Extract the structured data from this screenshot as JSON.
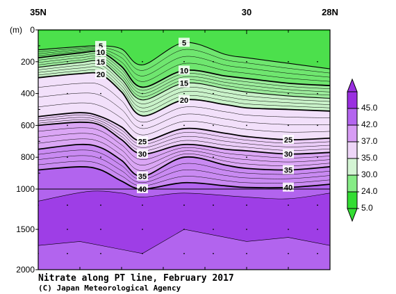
{
  "chart_data": {
    "type": "contour",
    "title": "Nitrate along PT line, February 2017",
    "credit": "(C) Japan Meteorological Agency",
    "unit_label": "(m)",
    "x_ticks": [
      "35N",
      "30",
      "28N"
    ],
    "x_range": [
      35,
      28
    ],
    "y_ticks": [
      "0",
      "200",
      "400",
      "600",
      "800",
      "1000",
      "1500",
      "2000"
    ],
    "y_range": [
      0,
      2000
    ],
    "y_break": 1000,
    "legend_levels": [
      "45.0",
      "42.0",
      "37.0",
      "35.0",
      "30.0",
      "24.0",
      "5.0"
    ],
    "legend_colors": [
      "#9a2fe0",
      "#b465ef",
      "#d79cf4",
      "#eed6f8",
      "#d4f5d4",
      "#86ec86",
      "#33dd33"
    ],
    "contour_labels": [
      "5",
      "10",
      "15",
      "20",
      "25",
      "30",
      "35",
      "40"
    ],
    "contours": [
      {
        "level": 5,
        "depths": [
          [
            35,
            125
          ],
          [
            34,
            105
          ],
          [
            33.5,
            100
          ],
          [
            33,
            120
          ],
          [
            32.5,
            220
          ],
          [
            31.5,
            80
          ],
          [
            30.5,
            155
          ],
          [
            30,
            175
          ],
          [
            29,
            210
          ],
          [
            28,
            245
          ]
        ]
      },
      {
        "level": 10,
        "depths": [
          [
            35,
            175
          ],
          [
            34,
            145
          ],
          [
            33.5,
            140
          ],
          [
            33,
            230
          ],
          [
            32.5,
            360
          ],
          [
            31.5,
            255
          ],
          [
            30.5,
            290
          ],
          [
            30,
            305
          ],
          [
            29,
            335
          ],
          [
            28,
            350
          ]
        ]
      },
      {
        "level": 15,
        "depths": [
          [
            35,
            235
          ],
          [
            34,
            205
          ],
          [
            33.5,
            200
          ],
          [
            33,
            310
          ],
          [
            32.5,
            440
          ],
          [
            31.5,
            335
          ],
          [
            30.5,
            370
          ],
          [
            30,
            390
          ],
          [
            29,
            415
          ],
          [
            28,
            430
          ]
        ]
      },
      {
        "level": 20,
        "depths": [
          [
            35,
            300
          ],
          [
            34,
            275
          ],
          [
            33.5,
            280
          ],
          [
            33,
            390
          ],
          [
            32.5,
            540
          ],
          [
            31.5,
            440
          ],
          [
            30.5,
            470
          ],
          [
            30,
            490
          ],
          [
            29,
            500
          ],
          [
            28,
            510
          ]
        ]
      },
      {
        "level": 25,
        "depths": [
          [
            35,
            545
          ],
          [
            34,
            520
          ],
          [
            33.5,
            545
          ],
          [
            33,
            610
          ],
          [
            32.5,
            700
          ],
          [
            31.5,
            620
          ],
          [
            30.5,
            650
          ],
          [
            30,
            670
          ],
          [
            29,
            690
          ],
          [
            28,
            680
          ]
        ]
      },
      {
        "level": 30,
        "depths": [
          [
            35,
            600
          ],
          [
            34,
            580
          ],
          [
            33.5,
            600
          ],
          [
            33,
            690
          ],
          [
            32.5,
            780
          ],
          [
            31.5,
            720
          ],
          [
            30.5,
            750
          ],
          [
            30,
            760
          ],
          [
            29,
            780
          ],
          [
            28,
            770
          ]
        ]
      },
      {
        "level": 35,
        "depths": [
          [
            35,
            750
          ],
          [
            34,
            720
          ],
          [
            33.5,
            740
          ],
          [
            33,
            820
          ],
          [
            32.5,
            920
          ],
          [
            31.5,
            800
          ],
          [
            30.5,
            850
          ],
          [
            30,
            870
          ],
          [
            29,
            880
          ],
          [
            28,
            860
          ]
        ]
      },
      {
        "level": 40,
        "depths": [
          [
            35,
            880
          ],
          [
            34,
            860
          ],
          [
            33.5,
            880
          ],
          [
            33,
            950
          ],
          [
            32.5,
            1000
          ],
          [
            31.5,
            960
          ],
          [
            30.5,
            980
          ],
          [
            30,
            990
          ],
          [
            29,
            990
          ],
          [
            28,
            970
          ]
        ]
      }
    ]
  }
}
